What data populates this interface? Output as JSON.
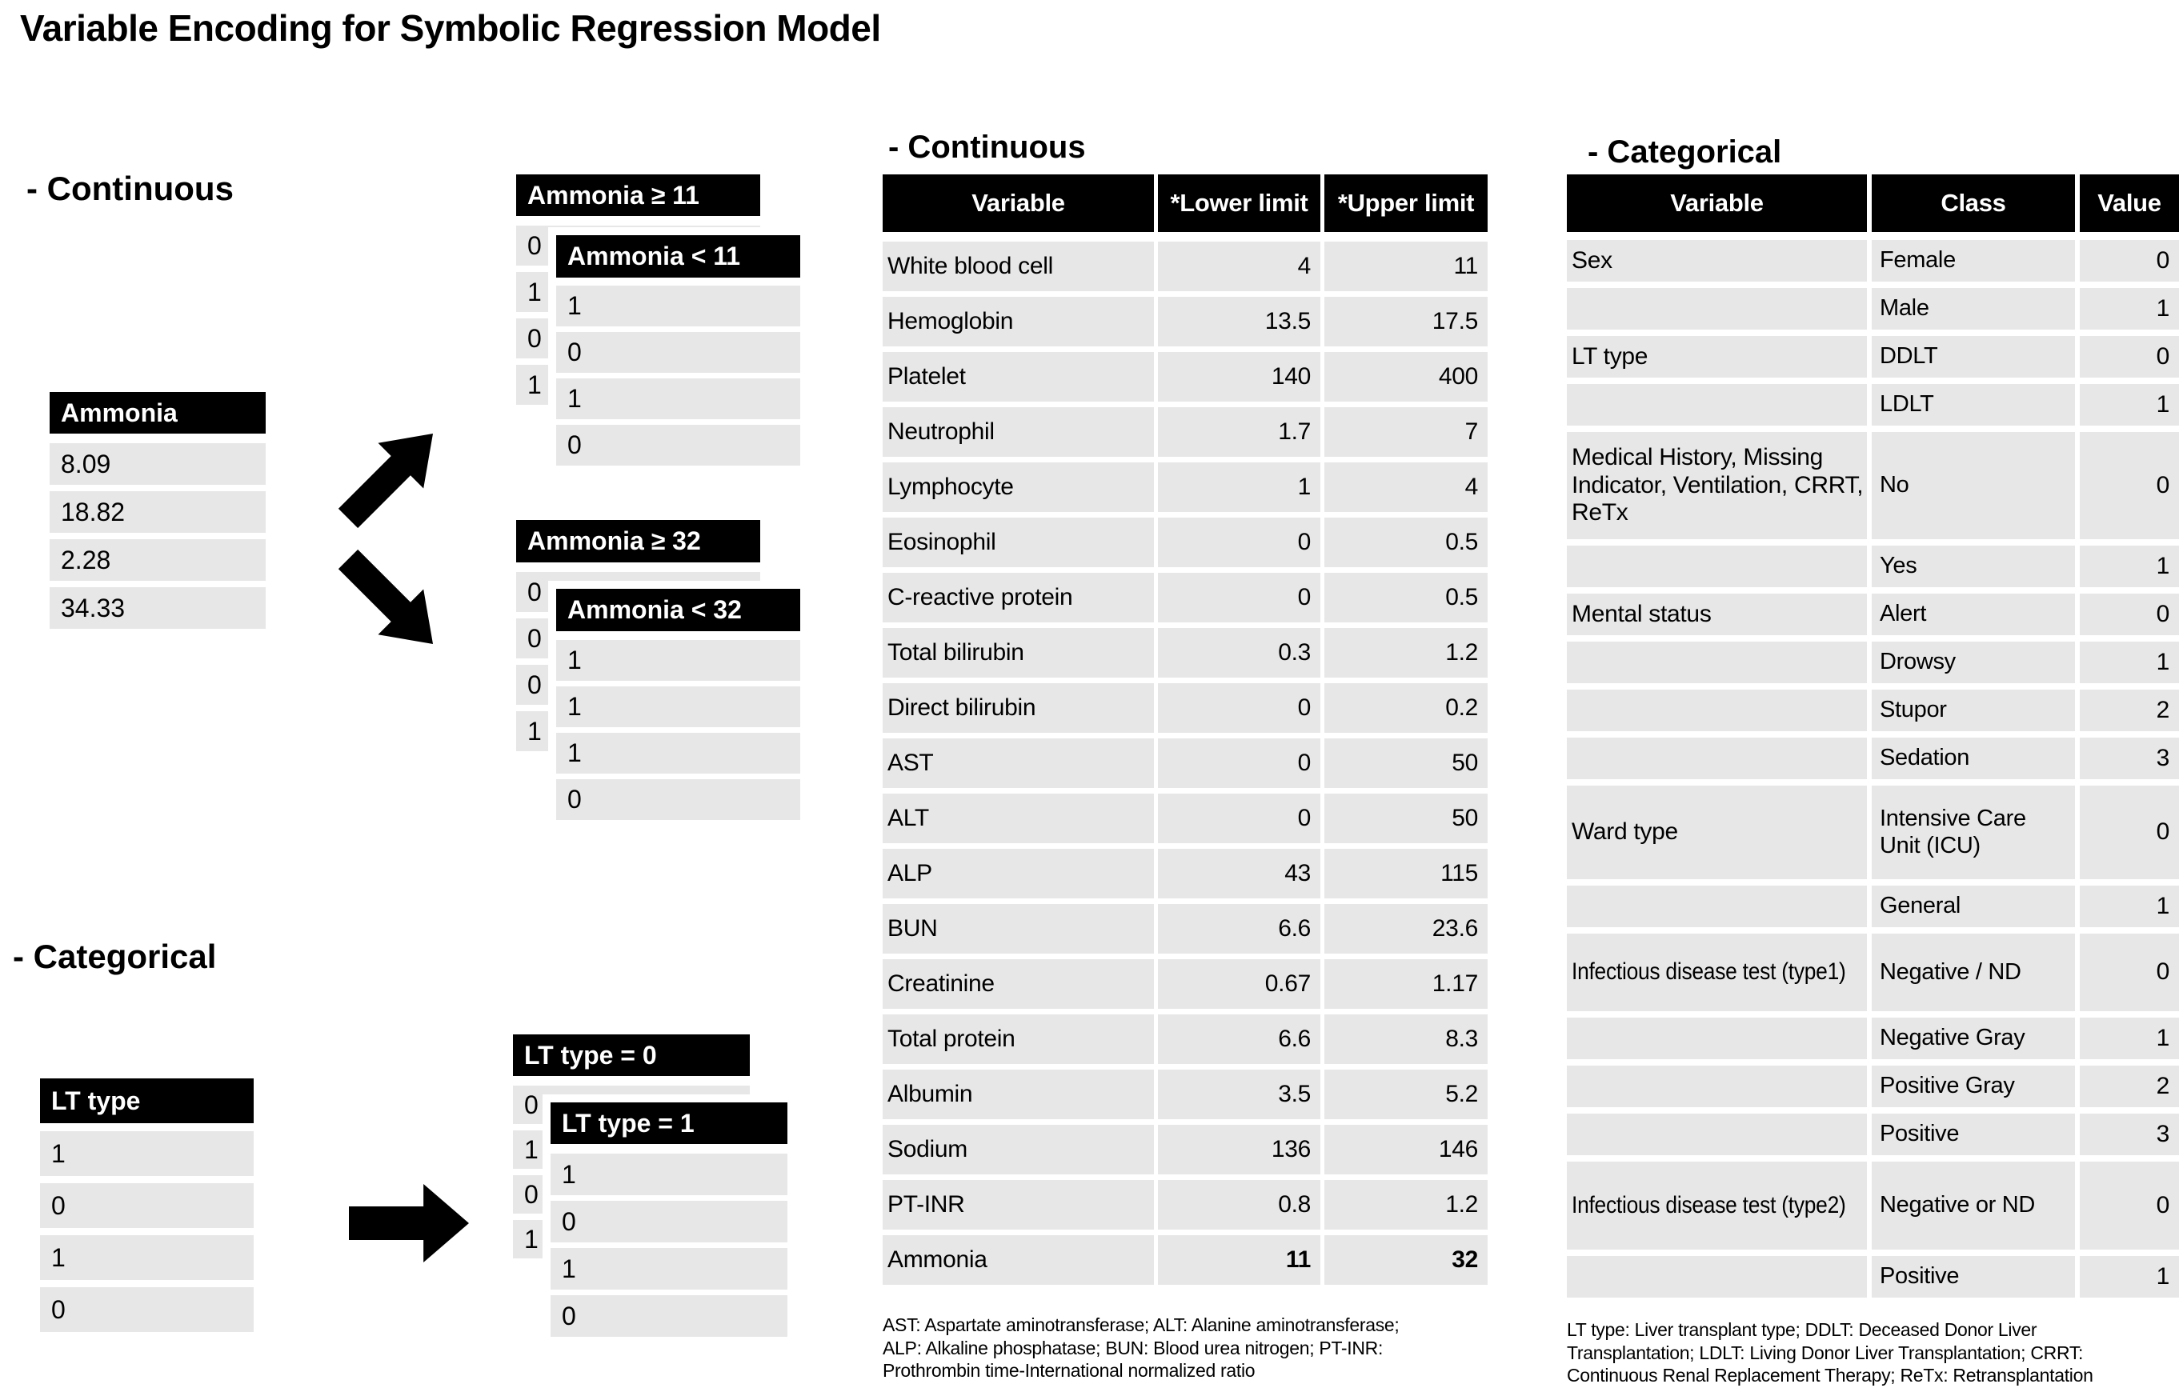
{
  "title": "Variable Encoding for Symbolic Regression Model",
  "left": {
    "continuous_heading": "- Continuous",
    "categorical_heading": "- Categorical",
    "ammonia": {
      "header": "Ammonia",
      "values": [
        "8.09",
        "18.82",
        "2.28",
        "34.33"
      ]
    },
    "ammonia_ge_11": {
      "header": "Ammonia ≥ 11",
      "values": [
        "0",
        "1",
        "0",
        "1"
      ]
    },
    "ammonia_lt_11": {
      "header": "Ammonia < 11",
      "values": [
        "1",
        "0",
        "1",
        "0"
      ]
    },
    "ammonia_ge_32": {
      "header": "Ammonia ≥ 32",
      "values": [
        "0",
        "0",
        "0",
        "1"
      ]
    },
    "ammonia_lt_32": {
      "header": "Ammonia < 32",
      "values": [
        "1",
        "1",
        "1",
        "0"
      ]
    },
    "lt_type": {
      "header": "LT type",
      "values": [
        "1",
        "0",
        "1",
        "0"
      ]
    },
    "lt_type_eq_0": {
      "header": "LT type = 0",
      "values": [
        "0",
        "1",
        "0",
        "1"
      ]
    },
    "lt_type_eq_1": {
      "header": "LT type = 1",
      "values": [
        "1",
        "0",
        "1",
        "0"
      ]
    }
  },
  "continuous_table": {
    "heading": "- Continuous",
    "columns": [
      "Variable",
      "*Lower limit",
      "*Upper limit"
    ],
    "rows": [
      {
        "variable": "White blood cell",
        "lower": "4",
        "upper": "11",
        "bold": false
      },
      {
        "variable": "Hemoglobin",
        "lower": "13.5",
        "upper": "17.5",
        "bold": false
      },
      {
        "variable": "Platelet",
        "lower": "140",
        "upper": "400",
        "bold": false
      },
      {
        "variable": "Neutrophil",
        "lower": "1.7",
        "upper": "7",
        "bold": false
      },
      {
        "variable": "Lymphocyte",
        "lower": "1",
        "upper": "4",
        "bold": false
      },
      {
        "variable": "Eosinophil",
        "lower": "0",
        "upper": "0.5",
        "bold": false
      },
      {
        "variable": "C-reactive protein",
        "lower": "0",
        "upper": "0.5",
        "bold": false
      },
      {
        "variable": "Total bilirubin",
        "lower": "0.3",
        "upper": "1.2",
        "bold": false
      },
      {
        "variable": "Direct bilirubin",
        "lower": "0",
        "upper": "0.2",
        "bold": false
      },
      {
        "variable": "AST",
        "lower": "0",
        "upper": "50",
        "bold": false
      },
      {
        "variable": "ALT",
        "lower": "0",
        "upper": "50",
        "bold": false
      },
      {
        "variable": "ALP",
        "lower": "43",
        "upper": "115",
        "bold": false
      },
      {
        "variable": "BUN",
        "lower": "6.6",
        "upper": "23.6",
        "bold": false
      },
      {
        "variable": "Creatinine",
        "lower": "0.67",
        "upper": "1.17",
        "bold": false
      },
      {
        "variable": "Total protein",
        "lower": "6.6",
        "upper": "8.3",
        "bold": false
      },
      {
        "variable": "Albumin",
        "lower": "3.5",
        "upper": "5.2",
        "bold": false
      },
      {
        "variable": "Sodium",
        "lower": "136",
        "upper": "146",
        "bold": false
      },
      {
        "variable": "PT-INR",
        "lower": "0.8",
        "upper": "1.2",
        "bold": false
      },
      {
        "variable": "Ammonia",
        "lower": "11",
        "upper": "32",
        "bold": true
      }
    ],
    "footnote_lines": [
      "AST: Aspartate aminotransferase; ALT: Alanine aminotransferase;",
      "ALP: Alkaline phosphatase; BUN: Blood urea nitrogen; PT-INR:",
      "Prothrombin time-International normalized ratio"
    ]
  },
  "categorical_table": {
    "heading": "- Categorical",
    "columns": [
      "Variable",
      "Class",
      "Value"
    ],
    "rows": [
      {
        "variable": "Sex",
        "cls": "Female",
        "value": "0"
      },
      {
        "variable": "",
        "cls": "Male",
        "value": "1"
      },
      {
        "variable": "LT type",
        "cls": "DDLT",
        "value": "0"
      },
      {
        "variable": "",
        "cls": "LDLT",
        "value": "1"
      },
      {
        "variable": "Medical History, Missing Indicator, Ventilation, CRRT, ReTx",
        "cls": "No",
        "value": "0"
      },
      {
        "variable": "",
        "cls": "Yes",
        "value": "1"
      },
      {
        "variable": "Mental status",
        "cls": "Alert",
        "value": "0"
      },
      {
        "variable": "",
        "cls": "Drowsy",
        "value": "1"
      },
      {
        "variable": "",
        "cls": "Stupor",
        "value": "2"
      },
      {
        "variable": "",
        "cls": "Sedation",
        "value": "3"
      },
      {
        "variable": "Ward type",
        "cls": "Intensive Care Unit (ICU)",
        "value": "0"
      },
      {
        "variable": "",
        "cls": "General",
        "value": "1"
      },
      {
        "variable": "Infectious disease test (type1)",
        "cls": "Negative / ND",
        "value": "0"
      },
      {
        "variable": "",
        "cls": "Negative Gray",
        "value": "1"
      },
      {
        "variable": "",
        "cls": "Positive Gray",
        "value": "2"
      },
      {
        "variable": "",
        "cls": "Positive",
        "value": "3"
      },
      {
        "variable": "Infectious disease test (type2)",
        "cls": "Negative or ND",
        "value": "0"
      },
      {
        "variable": "",
        "cls": "Positive",
        "value": "1"
      }
    ],
    "footnote_lines": [
      "LT type: Liver transplant type; DDLT: Deceased Donor Liver",
      "Transplantation; LDLT: Living Donor Liver Transplantation; CRRT:",
      "Continuous Renal Replacement Therapy; ReTx: Retransplantation"
    ]
  }
}
